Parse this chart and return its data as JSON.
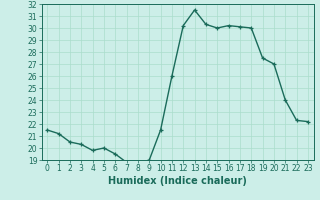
{
  "x": [
    0,
    1,
    2,
    3,
    4,
    5,
    6,
    7,
    8,
    9,
    10,
    11,
    12,
    13,
    14,
    15,
    16,
    17,
    18,
    19,
    20,
    21,
    22,
    23
  ],
  "y": [
    21.5,
    21.2,
    20.5,
    20.3,
    19.8,
    20.0,
    19.5,
    18.8,
    18.7,
    19.0,
    21.5,
    26.0,
    30.2,
    31.5,
    30.3,
    30.0,
    30.2,
    30.1,
    30.0,
    27.5,
    27.0,
    24.0,
    22.3,
    22.2
  ],
  "line_color": "#1a6b5a",
  "marker": "+",
  "marker_size": 3,
  "bg_color": "#cceee8",
  "grid_color": "#aaddcc",
  "xlabel": "Humidex (Indice chaleur)",
  "xlim": [
    -0.5,
    23.5
  ],
  "ylim": [
    19,
    32
  ],
  "yticks": [
    19,
    20,
    21,
    22,
    23,
    24,
    25,
    26,
    27,
    28,
    29,
    30,
    31,
    32
  ],
  "xticks": [
    0,
    1,
    2,
    3,
    4,
    5,
    6,
    7,
    8,
    9,
    10,
    11,
    12,
    13,
    14,
    15,
    16,
    17,
    18,
    19,
    20,
    21,
    22,
    23
  ],
  "xlabel_fontsize": 7,
  "tick_fontsize": 5.5,
  "linewidth": 1.0
}
